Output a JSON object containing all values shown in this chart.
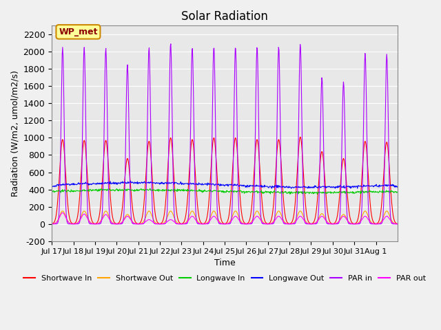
{
  "title": "Solar Radiation",
  "xlabel": "Time",
  "ylabel": "Radiation (W/m2, umol/m2/s)",
  "ylim": [
    -200,
    2300
  ],
  "yticks": [
    -200,
    0,
    200,
    400,
    600,
    800,
    1000,
    1200,
    1400,
    1600,
    1800,
    2000,
    2200
  ],
  "x_tick_labels": [
    "Jul 17",
    "Jul 18",
    "Jul 19",
    "Jul 20",
    "Jul 21",
    "Jul 22",
    "Jul 23",
    "Jul 24",
    "Jul 25",
    "Jul 26",
    "Jul 27",
    "Jul 28",
    "Jul 29",
    "Jul 30",
    "Jul 31",
    "Aug 1"
  ],
  "n_days": 16,
  "colors": {
    "shortwave_in": "#ff0000",
    "shortwave_out": "#ffa500",
    "longwave_in": "#00cc00",
    "longwave_out": "#0000ff",
    "par_in": "#aa00ff",
    "par_out": "#ff00ff"
  },
  "legend_labels": [
    "Shortwave In",
    "Shortwave Out",
    "Longwave In",
    "Longwave Out",
    "PAR in",
    "PAR out"
  ],
  "box_label": "WP_met",
  "box_color": "#ffff99",
  "box_edge_color": "#cc8800",
  "background_color": "#e8e8e8",
  "grid_color": "#ffffff",
  "title_fontsize": 12,
  "axis_fontsize": 9,
  "legend_fontsize": 9,
  "shortwave_in_peaks": [
    980,
    970,
    970,
    760,
    960,
    1000,
    980,
    1000,
    1000,
    980,
    980,
    1010,
    840,
    760,
    960,
    950
  ],
  "shortwave_out_peaks": [
    150,
    150,
    150,
    110,
    150,
    150,
    150,
    150,
    150,
    150,
    150,
    150,
    120,
    110,
    150,
    150
  ],
  "longwave_in_base": 360,
  "longwave_out_base": 420,
  "longwave_in_variation": 40,
  "par_in_peaks": [
    2050,
    2050,
    2040,
    1850,
    2050,
    2100,
    2050,
    2060,
    2060,
    2060,
    2060,
    2090,
    1700,
    1650,
    1980,
    1970
  ],
  "par_out_peaks": [
    130,
    115,
    110,
    90,
    50,
    50,
    90,
    90,
    90,
    90,
    90,
    90,
    90,
    90,
    90,
    90
  ],
  "samples_per_day": 48
}
